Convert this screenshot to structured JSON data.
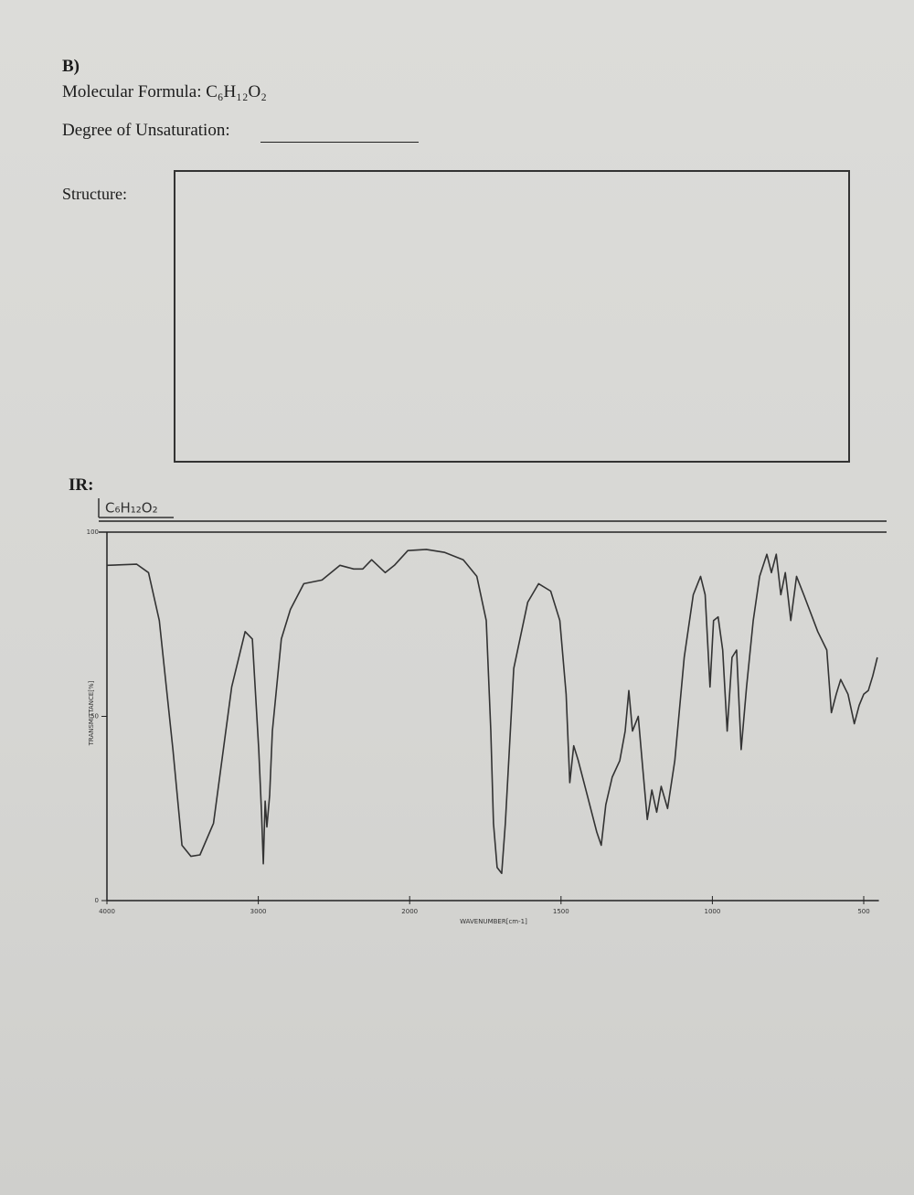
{
  "document": {
    "section": "B)",
    "molecular_formula": "Molecular Formula: C₆H₁₂O₂",
    "degree_label": "Degree of Unsaturation:",
    "structure_label": "Structure:",
    "ir_label": "IR:"
  },
  "chart_data": {
    "type": "line",
    "title": "C₆H₁₂O₂",
    "x_label": "WAVENUMBER[cm-1]",
    "y_label": "TRANSMITTANCE[%]",
    "color": "#333333",
    "xlim": [
      4000,
      450
    ],
    "xticks": [
      4000,
      3000,
      2000,
      1500,
      1000,
      500
    ],
    "ylim": [
      0,
      100
    ],
    "yticks": [
      0,
      50,
      100
    ],
    "x": [
      4000,
      3803,
      3725,
      3654,
      3564,
      3504,
      3445,
      3385,
      3296,
      3176,
      3087,
      3039,
      2997,
      2979,
      2967,
      2955,
      2943,
      2925,
      2907,
      2848,
      2788,
      2699,
      2579,
      2460,
      2370,
      2310,
      2251,
      2161,
      2101,
      2012,
      1945,
      1884,
      1823,
      1778,
      1747,
      1732,
      1723,
      1711,
      1696,
      1684,
      1656,
      1610,
      1574,
      1534,
      1504,
      1483,
      1471,
      1458,
      1443,
      1413,
      1382,
      1367,
      1352,
      1331,
      1306,
      1288,
      1276,
      1264,
      1245,
      1230,
      1215,
      1200,
      1184,
      1169,
      1148,
      1124,
      1093,
      1063,
      1039,
      1024,
      1008,
      996,
      981,
      966,
      951,
      935,
      920,
      905,
      887,
      865,
      844,
      820,
      805,
      789,
      774,
      759,
      741,
      722,
      698,
      652,
      622,
      607,
      591,
      576,
      552,
      531,
      515,
      500,
      485,
      470,
      455
    ],
    "values": [
      91,
      91.3,
      89,
      76,
      41,
      15,
      12,
      12.4,
      21,
      58,
      73,
      71,
      41,
      24,
      10,
      27,
      20,
      28.5,
      46,
      71,
      79,
      86,
      87,
      91,
      90,
      90,
      92.5,
      89,
      91,
      95,
      95.3,
      94.5,
      92.5,
      88,
      76,
      46,
      21,
      9,
      7.4,
      21,
      63,
      81,
      86,
      84,
      76,
      56,
      32,
      42,
      38,
      28.5,
      18.6,
      15,
      26,
      33.5,
      38,
      46,
      57,
      46,
      50,
      36,
      22,
      30,
      24,
      31,
      25,
      38,
      66,
      83,
      88,
      83,
      58,
      76,
      77,
      68,
      46,
      66,
      68,
      41,
      58,
      76,
      88,
      94,
      89,
      94,
      83,
      89,
      76,
      88,
      83,
      73,
      68,
      51,
      56,
      60,
      56,
      48,
      53,
      56,
      57,
      61,
      66
    ]
  }
}
